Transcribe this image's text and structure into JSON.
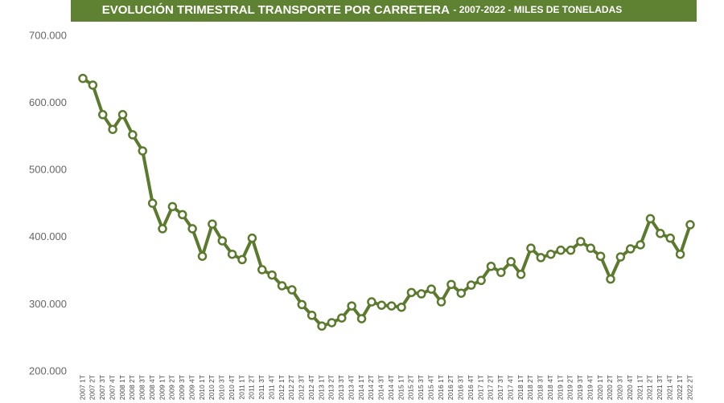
{
  "chart_data": {
    "type": "line",
    "title": "EVOLUCIÓN TRIMESTRAL TRANSPORTE POR CARRETERA",
    "subtitle": "- 2007-2022 - MILES DE TONELADAS",
    "categories": [
      "2007 1T",
      "2007 2T",
      "2007 3T",
      "2007 4T",
      "2008 1T",
      "2008 2T",
      "2008 3T",
      "2008 4T",
      "2009 1T",
      "2009 2T",
      "2009 3T",
      "2009 4T",
      "2010 1T",
      "2010 2T",
      "2010 3T",
      "2010 4T",
      "2011 1T",
      "2011 2T",
      "2011 3T",
      "2011 4T",
      "2012 1T",
      "2012 2T",
      "2012 3T",
      "2012 4T",
      "2013 1T",
      "2013 2T",
      "2013 3T",
      "2013 4T",
      "2014 1T",
      "2014 2T",
      "2014 3T",
      "2014 4T",
      "2015 1T",
      "2015 2T",
      "2015 3T",
      "2015 4T",
      "2016 1T",
      "2016 2T",
      "2016 3T",
      "2016 4T",
      "2017 1T",
      "2017 2T",
      "2017 3T",
      "2017 4T",
      "2018 1T",
      "2018 2T",
      "2018 3T",
      "2018 4T",
      "2019 1T",
      "2019 2T",
      "2019 3T",
      "2019 4T",
      "2020 1T",
      "2020 2T",
      "2020 3T",
      "2020 4T",
      "2021 1T",
      "2021 2T",
      "2021 3T",
      "2021 4T",
      "2022 1T",
      "2022 2T"
    ],
    "values": [
      637000,
      627000,
      583000,
      561000,
      583000,
      553000,
      529000,
      451000,
      413000,
      446000,
      434000,
      413000,
      372000,
      420000,
      395000,
      375000,
      367000,
      399000,
      352000,
      344000,
      328000,
      322000,
      300000,
      284000,
      268000,
      273000,
      280000,
      298000,
      279000,
      304000,
      299000,
      298000,
      296000,
      318000,
      316000,
      323000,
      304000,
      330000,
      317000,
      329000,
      336000,
      357000,
      348000,
      364000,
      345000,
      384000,
      370000,
      375000,
      381000,
      381000,
      394000,
      384000,
      372000,
      338000,
      371000,
      383000,
      389000,
      428000,
      406000,
      399000,
      375000,
      419000
    ],
    "color": "#5b7a2e",
    "ylim": [
      200000,
      700000
    ],
    "yticks": [
      {
        "value": 200000,
        "label": "200.000"
      },
      {
        "value": 300000,
        "label": "300.000"
      },
      {
        "value": 400000,
        "label": "400.000"
      },
      {
        "value": 500000,
        "label": "500.000"
      },
      {
        "value": 600000,
        "label": "600.000"
      },
      {
        "value": 700000,
        "label": "700.000"
      }
    ]
  }
}
